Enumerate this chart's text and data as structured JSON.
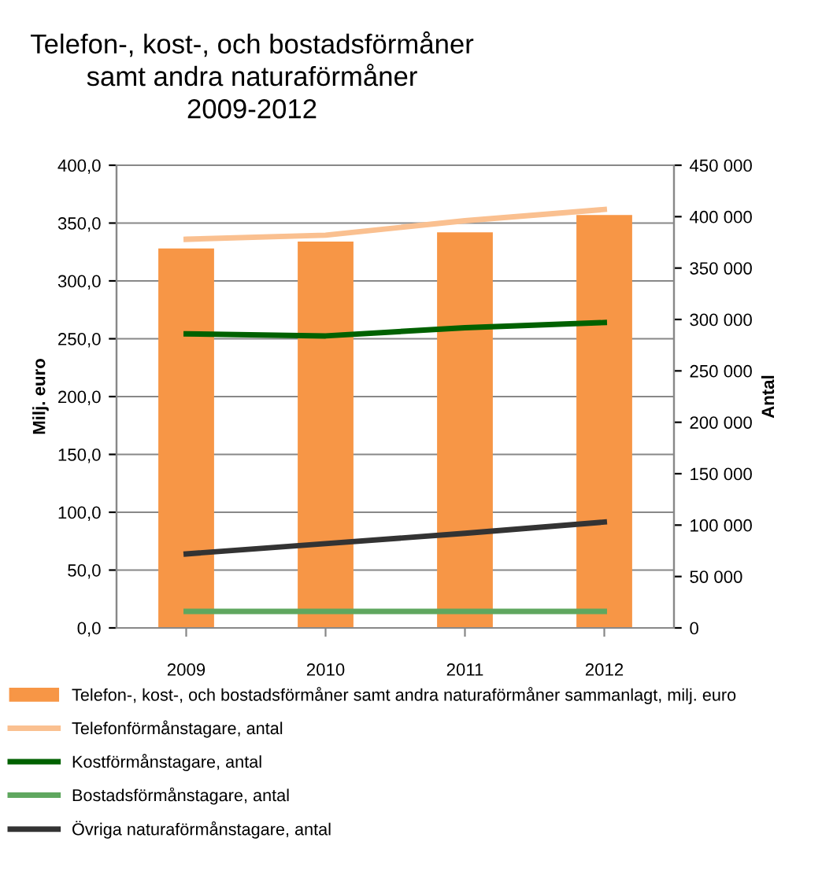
{
  "chart_data": {
    "type": "bar",
    "title": "Telefon-, kost-, och bostadsförmåner\nsamt andra naturaförmåner\n2009-2012",
    "ylabel": "Milj. euro",
    "y2label": "Antal",
    "categories": [
      "2009",
      "2010",
      "2011",
      "2012"
    ],
    "series": [
      {
        "name": "Telefon-, kost-, och bostadsförmåner samt andra naturaförmåner sammanlagt, milj. euro",
        "color": "#f79646",
        "values": [
          328,
          334,
          342,
          357
        ]
      },
      {
        "name": "Telefonförmånstagare, antal",
        "type": "line",
        "axis": "y2",
        "color": "#fac090",
        "values": [
          378000,
          382000,
          396000,
          407000
        ]
      },
      {
        "name": "Kostförmånstagare, antal",
        "type": "line",
        "axis": "y2",
        "color": "#006100",
        "values": [
          286000,
          284000,
          292000,
          297000
        ]
      },
      {
        "name": "Bostadsförmånstagare, antal",
        "type": "line",
        "axis": "y2",
        "color": "#5fa75f",
        "values": [
          16000,
          16000,
          16000,
          16000
        ]
      },
      {
        "name": "Övriga naturaförmånstagare, antal",
        "type": "line",
        "axis": "y2",
        "color": "#333333",
        "values": [
          72000,
          82000,
          92000,
          103000
        ]
      }
    ],
    "ylim": [
      0,
      400
    ],
    "yticks": [
      {
        "value": 0,
        "label": "0,0"
      },
      {
        "value": 50,
        "label": "50,0"
      },
      {
        "value": 100,
        "label": "100,0"
      },
      {
        "value": 150,
        "label": "150,0"
      },
      {
        "value": 200,
        "label": "200,0"
      },
      {
        "value": 250,
        "label": "250,0"
      },
      {
        "value": 300,
        "label": "300,0"
      },
      {
        "value": 350,
        "label": "350,0"
      },
      {
        "value": 400,
        "label": "400,0"
      }
    ],
    "y2lim": [
      0,
      450000
    ],
    "y2ticks": [
      0,
      {
        "value": 50000,
        "label": "50 000"
      },
      {
        "value": 100000,
        "label": "100 000"
      },
      {
        "value": 150000,
        "label": "150 000"
      },
      {
        "value": 200000,
        "label": "200 000"
      },
      {
        "value": 250000,
        "label": "250 000"
      },
      {
        "value": 300000,
        "label": "300 000"
      },
      {
        "value": 350000,
        "label": "350 000"
      },
      {
        "value": 400000,
        "label": "400 000"
      },
      {
        "value": 450000,
        "label": "450 000"
      }
    ],
    "grid": "y",
    "legend": "bottom",
    "line_style": "solid",
    "marker": "none"
  }
}
